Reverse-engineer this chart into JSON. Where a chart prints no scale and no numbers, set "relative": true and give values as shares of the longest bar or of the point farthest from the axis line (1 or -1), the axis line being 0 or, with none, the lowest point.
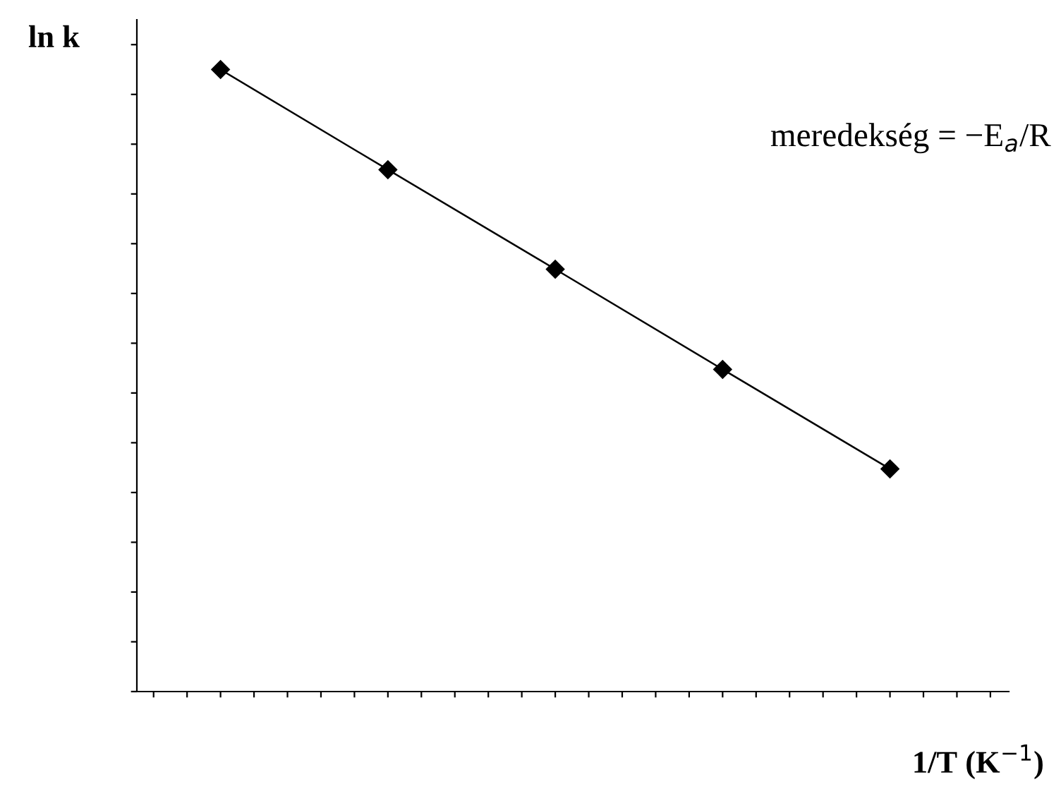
{
  "chart_data": {
    "type": "line",
    "relative": true,
    "categories": [
      null,
      null,
      null,
      null,
      null
    ],
    "series": [
      {
        "color": "#000000",
        "values": [
          1,
          0.839,
          0.679,
          0.518,
          0.358
        ]
      }
    ],
    "marker": "diamond",
    "line_style": "solid",
    "grid": false,
    "legend": false,
    "xlabel": "1/T (K$^{−1}$)",
    "ylabel": "ln k",
    "annotations": [
      "meredekség = −E$_{a}$/R"
    ]
  }
}
